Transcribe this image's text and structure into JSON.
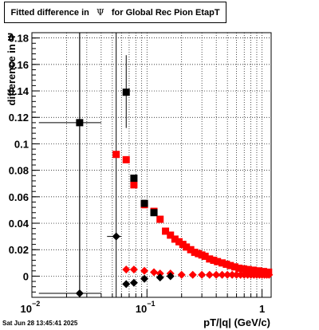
{
  "title": {
    "prefix": "Fitted difference in",
    "symbol": "Ψ",
    "suffix": "for Global Rec Pion EtapT"
  },
  "timestamp": "Sat Jun 28 13:45:41 2025",
  "colors": {
    "series_red": "#ff0000",
    "series_black": "#000000",
    "grid": "#000000",
    "background": "#ffffff"
  },
  "chart_data": {
    "type": "scatter",
    "title": "Fitted difference in Ψ for Global Rec Pion EtapT",
    "xlabel": "pT/|q| (GeV/c)",
    "ylabel": "difference in Ψ",
    "xscale": "log",
    "xlim": [
      0.01,
      1.2
    ],
    "ylim": [
      -0.016,
      0.184
    ],
    "grid": true,
    "x_tick_labels": [
      {
        "value": 0.01,
        "base": "10",
        "exp": "−2"
      },
      {
        "value": 0.1,
        "base": "10",
        "exp": "−1"
      },
      {
        "value": 1,
        "base": "1",
        "exp": ""
      }
    ],
    "y_ticks": [
      0,
      0.02,
      0.04,
      0.06,
      0.08,
      0.1,
      0.12,
      0.14,
      0.16,
      0.18
    ],
    "y_tick_labels": [
      "0",
      "0.02",
      "0.04",
      "0.06",
      "0.08",
      "0.1",
      "0.12",
      "0.14",
      "0.16",
      "0.18"
    ],
    "series": [
      {
        "color": "red",
        "marker": "square",
        "points": [
          [
            0.054,
            0.092
          ],
          [
            0.066,
            0.088
          ],
          [
            0.077,
            0.069
          ],
          [
            0.095,
            0.054
          ],
          [
            0.115,
            0.049
          ],
          [
            0.13,
            0.043
          ],
          [
            0.145,
            0.034
          ],
          [
            0.16,
            0.031
          ],
          [
            0.175,
            0.028
          ],
          [
            0.19,
            0.026
          ],
          [
            0.205,
            0.024
          ],
          [
            0.22,
            0.022
          ],
          [
            0.24,
            0.02
          ],
          [
            0.26,
            0.018
          ],
          [
            0.28,
            0.017
          ],
          [
            0.3,
            0.016
          ],
          [
            0.32,
            0.015
          ],
          [
            0.35,
            0.013
          ],
          [
            0.38,
            0.012
          ],
          [
            0.41,
            0.011
          ],
          [
            0.45,
            0.01
          ],
          [
            0.49,
            0.009
          ],
          [
            0.53,
            0.008
          ],
          [
            0.58,
            0.007
          ],
          [
            0.63,
            0.006
          ],
          [
            0.69,
            0.0055
          ],
          [
            0.76,
            0.005
          ],
          [
            0.84,
            0.0045
          ],
          [
            0.93,
            0.004
          ],
          [
            1.03,
            0.0035
          ],
          [
            1.14,
            0.003
          ]
        ]
      },
      {
        "color": "black",
        "marker": "square",
        "points": [
          [
            0.026,
            0.116
          ],
          [
            0.066,
            0.139
          ],
          [
            0.077,
            0.074
          ],
          [
            0.095,
            0.055
          ],
          [
            0.115,
            0.048
          ]
        ],
        "errors": [
          {
            "x": 0.026,
            "xlo": 0.0115,
            "xhi": 0.04,
            "ylo": -0.05,
            "yhi": 0.25
          },
          {
            "x": 0.066,
            "xlo": 0.066,
            "xhi": 0.066,
            "ylo": 0.112,
            "yhi": 0.167
          }
        ]
      },
      {
        "color": "red",
        "marker": "diamond",
        "points": [
          [
            0.066,
            0.005
          ],
          [
            0.077,
            0.005
          ],
          [
            0.095,
            0.004
          ],
          [
            0.115,
            0.003
          ],
          [
            0.13,
            0.002
          ],
          [
            0.16,
            0.002
          ],
          [
            0.2,
            0.001
          ],
          [
            0.25,
            0.001
          ],
          [
            0.3,
            0.001
          ],
          [
            0.35,
            0.001
          ],
          [
            0.4,
            0.001
          ],
          [
            0.45,
            0.001
          ],
          [
            0.5,
            0.001
          ],
          [
            0.55,
            0.001
          ],
          [
            0.6,
            0.001
          ],
          [
            0.65,
            0.001
          ],
          [
            0.7,
            0.001
          ],
          [
            0.75,
            0.001
          ],
          [
            0.8,
            0.001
          ],
          [
            0.85,
            0.001
          ],
          [
            0.9,
            0.001
          ],
          [
            0.95,
            0.001
          ],
          [
            1.0,
            0.001
          ],
          [
            1.05,
            0.001
          ],
          [
            1.1,
            0.001
          ],
          [
            1.15,
            0.001
          ]
        ]
      },
      {
        "color": "black",
        "marker": "diamond",
        "points": [
          [
            0.026,
            -0.013
          ],
          [
            0.054,
            0.03
          ],
          [
            0.066,
            -0.006
          ],
          [
            0.077,
            -0.005
          ],
          [
            0.095,
            -0.002
          ],
          [
            0.13,
            -0.001
          ],
          [
            0.16,
            0.0
          ]
        ],
        "errors": [
          {
            "x": 0.026,
            "xlo": 0.0115,
            "xhi": 0.04,
            "ylo": -0.05,
            "yhi": 0.25
          },
          {
            "x": 0.054,
            "xlo": 0.045,
            "xhi": 0.06,
            "ylo": -0.05,
            "yhi": 0.25
          }
        ]
      }
    ]
  }
}
